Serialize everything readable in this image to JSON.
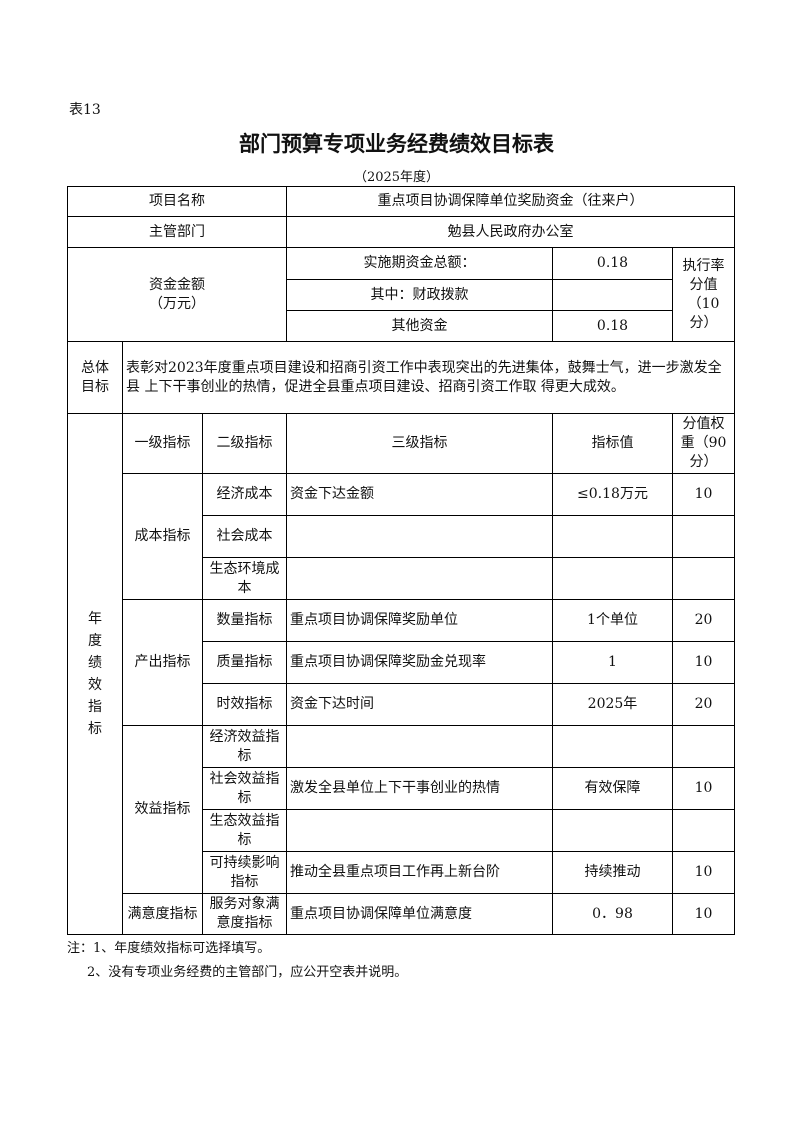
{
  "table_no": "表13",
  "title": "部门预算专项业务经费绩效目标表",
  "year": "（2025年度）",
  "project": {
    "label": "项目名称",
    "value": "重点项目协调保障单位奖励资金（往来户）"
  },
  "department": {
    "label": "主管部门",
    "value": "勉县人民政府办公室"
  },
  "funds": {
    "label": "资金金额\n（万元）",
    "label_line1": "资金金额",
    "label_line2": "（万元）",
    "rows": [
      {
        "label": "实施期资金总额：",
        "value": "0.18"
      },
      {
        "label": "其中：财政拨款",
        "value": ""
      },
      {
        "label": "其他资金",
        "value": "0.18"
      }
    ],
    "score_label": "执行率分值（10分）"
  },
  "overall_goal": {
    "label": "总体目标",
    "text": "表彰对2023年度重点项目建设和招商引资工作中表现突出的先进集体，鼓舞士气，进一步激发全县 上下干事创业的热情，促进全县重点项目建设、招商引资工作取 得更大成效。"
  },
  "annual": {
    "label": "年度绩效指标",
    "headers": [
      "一级指标",
      "二级指标",
      "三级指标",
      "指标值",
      "分值权重（90分）"
    ],
    "groups": [
      {
        "level1": "成本指标",
        "rows": [
          {
            "level2": "经济成本",
            "level3": "资金下达金额",
            "value": "≤0.18万元",
            "score": "10"
          },
          {
            "level2": "社会成本",
            "level3": "",
            "value": "",
            "score": ""
          },
          {
            "level2": "生态环境成本",
            "level3": "",
            "value": "",
            "score": ""
          }
        ]
      },
      {
        "level1": "产出指标",
        "rows": [
          {
            "level2": "数量指标",
            "level3": "重点项目协调保障奖励单位",
            "value": "1个单位",
            "score": "20"
          },
          {
            "level2": "质量指标",
            "level3": "重点项目协调保障奖励金兑现率",
            "value": "1",
            "score": "10"
          },
          {
            "level2": "时效指标",
            "level3": "资金下达时间",
            "value": "2025年",
            "score": "20"
          }
        ]
      },
      {
        "level1": "效益指标",
        "rows": [
          {
            "level2": "经济效益指标",
            "level3": "",
            "value": "",
            "score": ""
          },
          {
            "level2": "社会效益指标",
            "level3": "激发全县单位上下干事创业的热情",
            "value": "有效保障",
            "score": "10"
          },
          {
            "level2": "生态效益指标",
            "level3": "",
            "value": "",
            "score": ""
          },
          {
            "level2": "可持续影响指标",
            "level3": "推动全县重点项目工作再上新台阶",
            "value": "持续推动",
            "score": "10"
          }
        ]
      },
      {
        "level1": "满意度指标",
        "rows": [
          {
            "level2": "服务对象满意度指标",
            "level3": "重点项目协调保障单位满意度",
            "value": "0．98",
            "score": "10"
          }
        ]
      }
    ]
  },
  "notes": [
    "注：1、年度绩效指标可选择填写。",
    "2、没有专项业务经费的主管部门，应公开空表并说明。"
  ]
}
